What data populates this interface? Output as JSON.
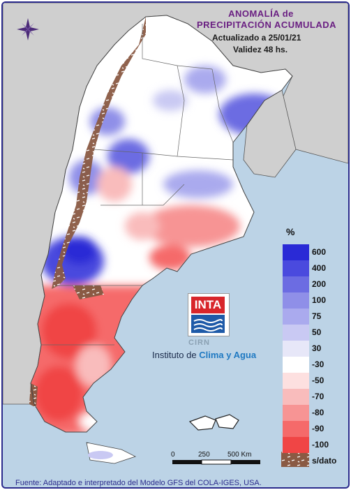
{
  "header": {
    "title_line1": "ANOMALÍA de",
    "title_line2": "PRECIPITACIÓN ACUMULADA",
    "updated": "Actualizado a 25/01/21",
    "validity": "Validez 48 hs."
  },
  "legend": {
    "unit": "%",
    "items": [
      {
        "label": "600",
        "color": "#2a2ad6"
      },
      {
        "label": "400",
        "color": "#4a4ade"
      },
      {
        "label": "200",
        "color": "#6c6ce2"
      },
      {
        "label": "100",
        "color": "#8f8fe8"
      },
      {
        "label": "75",
        "color": "#aaaaee"
      },
      {
        "label": "50",
        "color": "#c9c9f3"
      },
      {
        "label": "30",
        "color": "#e7e7f8"
      },
      {
        "label": "-30",
        "color": "#ffffff"
      },
      {
        "label": "-50",
        "color": "#fde0e0"
      },
      {
        "label": "-70",
        "color": "#f9bcbc"
      },
      {
        "label": "-80",
        "color": "#f79494"
      },
      {
        "label": "-90",
        "color": "#f56a6a"
      },
      {
        "label": "-100",
        "color": "#f04545"
      }
    ],
    "no_data_label": "s/dato",
    "no_data_color": "#8a5a44"
  },
  "logo": {
    "brand": "INTA",
    "cirn": "CIRN",
    "institute_prefix": "Instituto de ",
    "institute_highlight": "Clima y Agua"
  },
  "scale_bar": {
    "labels": [
      "0",
      "250",
      "500 Km"
    ]
  },
  "footer": "Fuente: Adaptado e interpretado del Modelo GFS del COLA-IGES, USA.",
  "map_colors": {
    "ocean": "#bcd3e6",
    "neighbor_land": "#cfcfcf",
    "border": "#555555"
  },
  "compass_icon": "compass-rose-icon"
}
